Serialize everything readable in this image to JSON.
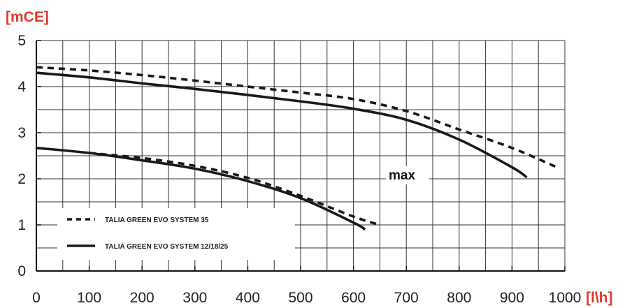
{
  "chart_data": {
    "type": "line",
    "title": "",
    "ylabel": "[mCE]",
    "xlabel": "[l\\h]",
    "xlim": [
      0,
      1000
    ],
    "ylim": [
      0,
      5
    ],
    "x_ticks": [
      0,
      100,
      200,
      300,
      400,
      500,
      600,
      700,
      800,
      900,
      1000
    ],
    "x_tick_labels": [
      "0",
      "100",
      "200",
      "300",
      "400",
      "500",
      "600",
      "700",
      "800",
      "900",
      "1000"
    ],
    "y_ticks": [
      0,
      1,
      2,
      3,
      4,
      5
    ],
    "y_tick_labels": [
      "0",
      "1",
      "2",
      "3",
      "4",
      "5"
    ],
    "grid": true,
    "legend_placement": "bottom-left",
    "colors": {
      "axis_label": "#e03a2f",
      "line": "#1a1a1a",
      "grid": "#333333"
    },
    "annotation": {
      "text": "max"
    },
    "series": [
      {
        "name": "TALIA GREEN EVO SYSTEM 35",
        "style": "dashed",
        "curve": "max",
        "x": [
          0,
          100,
          200,
          300,
          400,
          500,
          600,
          700,
          800,
          900,
          985
        ],
        "y": [
          4.42,
          4.35,
          4.25,
          4.13,
          4.0,
          3.87,
          3.73,
          3.47,
          3.07,
          2.67,
          2.25
        ]
      },
      {
        "name": "TALIA GREEN EVO SYSTEM 12/18/25",
        "style": "solid",
        "curve": "max",
        "x": [
          0,
          100,
          200,
          300,
          400,
          500,
          600,
          700,
          800,
          900,
          928
        ],
        "y": [
          4.3,
          4.2,
          4.07,
          3.95,
          3.82,
          3.68,
          3.52,
          3.28,
          2.85,
          2.25,
          2.03
        ]
      },
      {
        "name": "TALIA GREEN EVO SYSTEM 35",
        "style": "dashed",
        "curve": "min",
        "x": [
          100,
          200,
          300,
          400,
          500,
          600,
          650
        ],
        "y": [
          2.56,
          2.45,
          2.28,
          2.02,
          1.63,
          1.18,
          1.0
        ]
      },
      {
        "name": "TALIA GREEN EVO SYSTEM 12/18/25",
        "style": "solid",
        "curve": "min",
        "x": [
          0,
          100,
          200,
          300,
          400,
          500,
          600,
          622
        ],
        "y": [
          2.67,
          2.56,
          2.4,
          2.22,
          1.95,
          1.58,
          1.05,
          0.9
        ]
      }
    ]
  }
}
